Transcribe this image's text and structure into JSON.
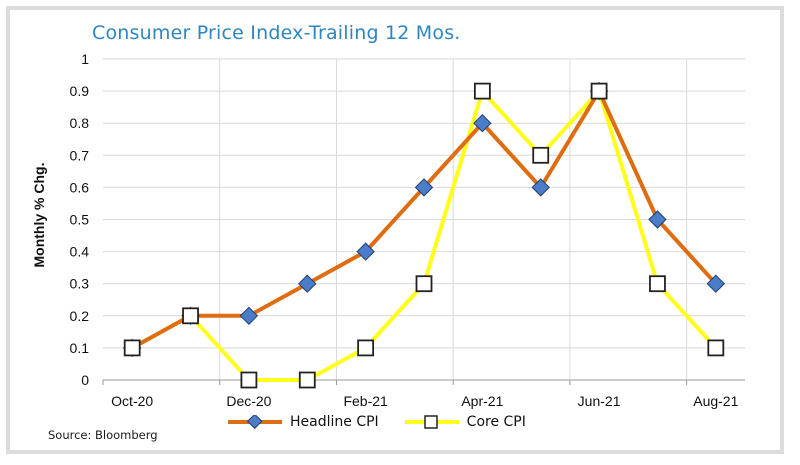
{
  "title": "Consumer Price Index-Trailing 12 Mos.",
  "source": "Source: Bloomberg",
  "colors": {
    "headline": "#e06c10",
    "core": "#ffff1a",
    "marker_headline": "#4a7cc7",
    "axis_text": "#111111",
    "title": "#2e86c1"
  },
  "chart_data": {
    "type": "line",
    "title": "Consumer Price Index-Trailing 12 Mos.",
    "xlabel": "",
    "ylabel": "Monthly % Chg.",
    "ylim": [
      0,
      1
    ],
    "yticks": [
      "0",
      "0.1",
      "0.2",
      "0.3",
      "0.4",
      "0.5",
      "0.6",
      "0.7",
      "0.8",
      "0.9",
      "1"
    ],
    "categories": [
      "Oct-20",
      "Nov-20",
      "Dec-20",
      "Jan-21",
      "Feb-21",
      "Mar-21",
      "Apr-21",
      "May-21",
      "Jun-21",
      "Jul-21",
      "Aug-21"
    ],
    "xtick_labels": [
      "Oct-20",
      "Dec-20",
      "Feb-21",
      "Apr-21",
      "Jun-21",
      "Aug-21"
    ],
    "grid": true,
    "legend": "bottom",
    "series": [
      {
        "name": "Headline CPI",
        "values": [
          0.1,
          0.2,
          0.2,
          0.3,
          0.4,
          0.6,
          0.8,
          0.6,
          0.9,
          0.5,
          0.3
        ]
      },
      {
        "name": "Core CPI",
        "values": [
          0.1,
          0.2,
          0.0,
          0.0,
          0.1,
          0.3,
          0.9,
          0.7,
          0.9,
          0.3,
          0.1
        ]
      }
    ]
  }
}
